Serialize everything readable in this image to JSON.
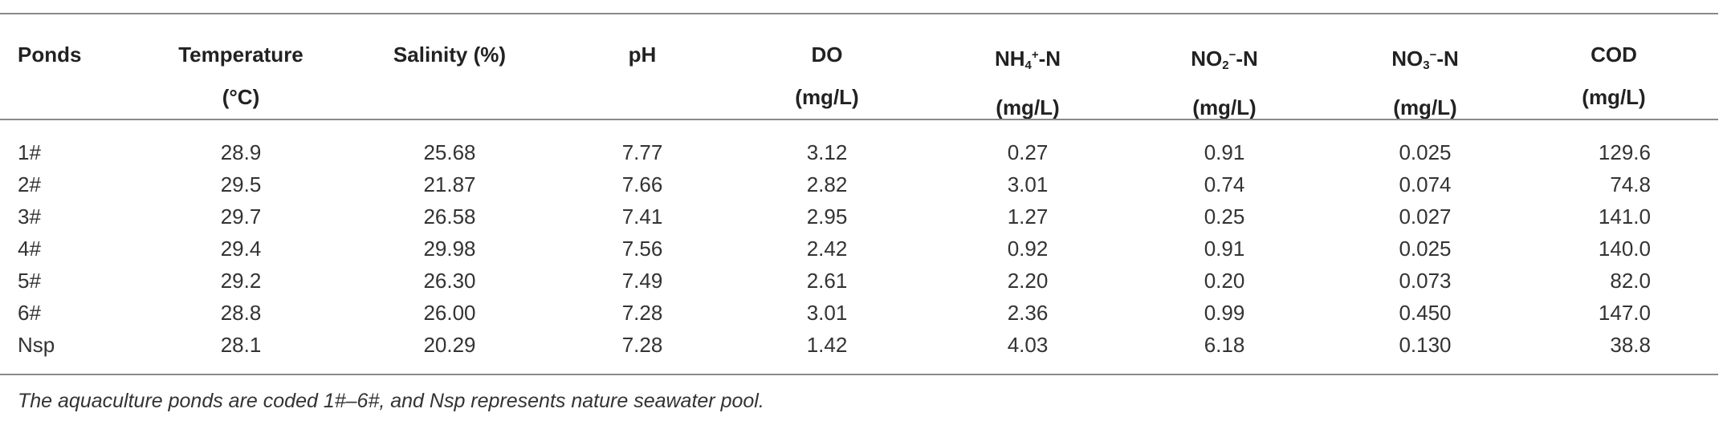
{
  "table": {
    "headers": [
      {
        "line1": "Ponds",
        "line2": ""
      },
      {
        "line1": "Temperature",
        "line2": "(°C)"
      },
      {
        "line1": "Salinity (%)",
        "line2": ""
      },
      {
        "line1": "pH",
        "line2": ""
      },
      {
        "line1": "DO",
        "line2": "(mg/L)"
      },
      {
        "line1": "NH4+-N",
        "line2": "(mg/L)"
      },
      {
        "line1": "NO2−-N",
        "line2": "(mg/L)"
      },
      {
        "line1": "NO3−-N",
        "line2": "(mg/L)"
      },
      {
        "line1": "COD",
        "line2": "(mg/L)"
      }
    ],
    "header_parts": {
      "nh_base": "NH",
      "nh_sub": "4",
      "nh_sup": "+",
      "nh_tail": "-N",
      "no2_base": "NO",
      "no2_sub": "2",
      "no2_sup": "−",
      "no2_tail": "-N",
      "no3_base": "NO",
      "no3_sub": "3",
      "no3_sup": "−",
      "no3_tail": "-N"
    },
    "rows": [
      [
        "1#",
        "28.9",
        "25.68",
        "7.77",
        "3.12",
        "0.27",
        "0.91",
        "0.025",
        "129.6"
      ],
      [
        "2#",
        "29.5",
        "21.87",
        "7.66",
        "2.82",
        "3.01",
        "0.74",
        "0.074",
        "74.8"
      ],
      [
        "3#",
        "29.7",
        "26.58",
        "7.41",
        "2.95",
        "1.27",
        "0.25",
        "0.027",
        "141.0"
      ],
      [
        "4#",
        "29.4",
        "29.98",
        "7.56",
        "2.42",
        "0.92",
        "0.91",
        "0.025",
        "140.0"
      ],
      [
        "5#",
        "29.2",
        "26.30",
        "7.49",
        "2.61",
        "2.20",
        "0.20",
        "0.073",
        "82.0"
      ],
      [
        "6#",
        "28.8",
        "26.00",
        "7.28",
        "3.01",
        "2.36",
        "0.99",
        "0.450",
        "147.0"
      ],
      [
        "Nsp",
        "28.1",
        "20.29",
        "7.28",
        "1.42",
        "4.03",
        "6.18",
        "0.130",
        "38.8"
      ]
    ]
  },
  "footnote": "The aquaculture ponds are coded 1#–6#, and Nsp represents nature seawater pool."
}
